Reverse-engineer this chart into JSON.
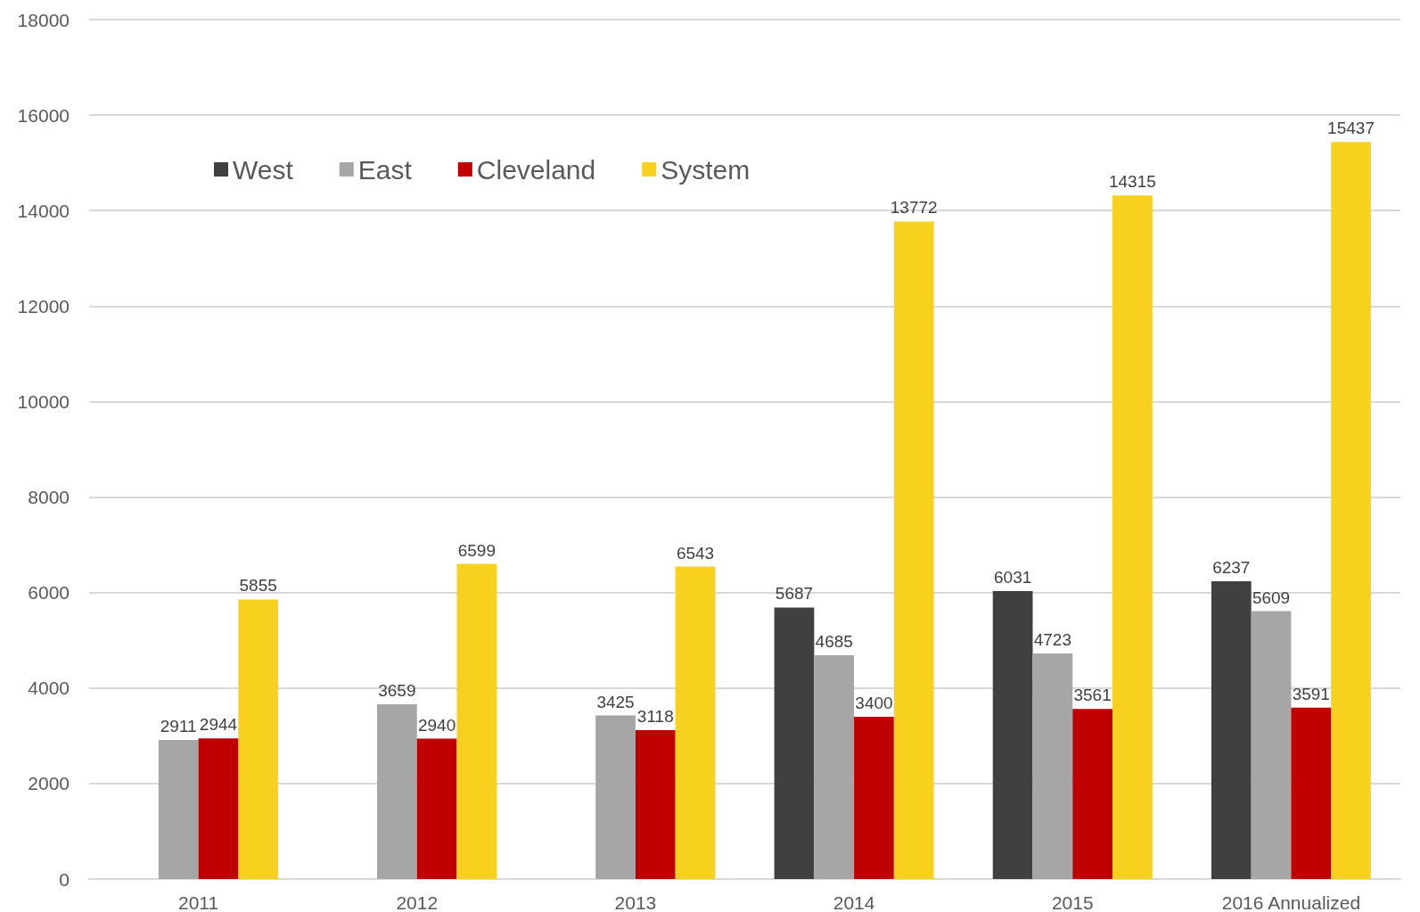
{
  "chart_data": {
    "type": "bar",
    "categories": [
      "2011",
      "2012",
      "2013",
      "2014",
      "2015",
      "2016 Annualized"
    ],
    "series": [
      {
        "name": "West",
        "color": "#404040",
        "values": [
          null,
          null,
          null,
          5687,
          6031,
          6237
        ]
      },
      {
        "name": "East",
        "color": "#a6a6a6",
        "values": [
          2911,
          3659,
          3425,
          4685,
          4723,
          5609
        ]
      },
      {
        "name": "Cleveland",
        "color": "#c00000",
        "values": [
          2944,
          2940,
          3118,
          3400,
          3561,
          3591
        ]
      },
      {
        "name": "System",
        "color": "#f8d01e",
        "values": [
          5855,
          6599,
          6543,
          13772,
          14315,
          15437
        ]
      }
    ],
    "ylim": [
      0,
      18000
    ],
    "yticks": [
      0,
      2000,
      4000,
      6000,
      8000,
      10000,
      12000,
      14000,
      16000,
      18000
    ],
    "grid": "y",
    "legend": "top left",
    "data_labels": true
  }
}
